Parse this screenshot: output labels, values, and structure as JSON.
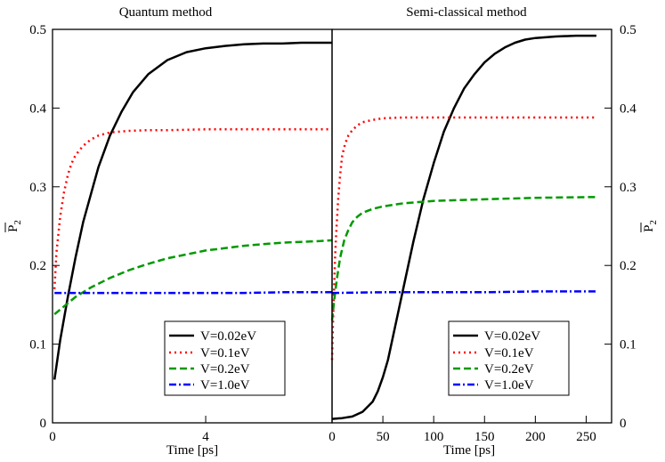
{
  "chart_data": [
    {
      "type": "line",
      "title": "Quantum method",
      "xlabel": "Time [ps]",
      "ylabel_main": "P",
      "ylabel_sub": "2",
      "xlim": [
        0,
        7.3
      ],
      "ylim": [
        0,
        0.5
      ],
      "xticks": [
        0,
        4
      ],
      "xtick_labels": [
        "0",
        "4"
      ],
      "yticks": [
        0,
        0.1,
        0.2,
        0.3,
        0.4,
        0.5
      ],
      "ytick_labels": [
        "0",
        "0.1",
        "0.2",
        "0.3",
        "0.4",
        "0.5"
      ],
      "legend_position": "bottom-right",
      "series": [
        {
          "name": "V=0.02eV",
          "color": "#000000",
          "style": "solid",
          "x": [
            0.05,
            0.2,
            0.4,
            0.6,
            0.8,
            1.0,
            1.2,
            1.5,
            1.8,
            2.1,
            2.5,
            3.0,
            3.5,
            4.0,
            4.5,
            5.0,
            5.5,
            6.0,
            6.5,
            7.0,
            7.3
          ],
          "y": [
            0.055,
            0.105,
            0.16,
            0.21,
            0.255,
            0.29,
            0.325,
            0.365,
            0.395,
            0.42,
            0.443,
            0.461,
            0.471,
            0.476,
            0.479,
            0.481,
            0.482,
            0.482,
            0.483,
            0.483,
            0.483
          ]
        },
        {
          "name": "V=0.1eV",
          "color": "#ff0000",
          "style": "dotted",
          "x": [
            0.05,
            0.1,
            0.2,
            0.3,
            0.4,
            0.5,
            0.6,
            0.8,
            1.0,
            1.2,
            1.5,
            2.0,
            2.5,
            3.0,
            4.0,
            5.0,
            6.0,
            7.0,
            7.3
          ],
          "y": [
            0.17,
            0.215,
            0.262,
            0.293,
            0.315,
            0.33,
            0.34,
            0.352,
            0.36,
            0.365,
            0.369,
            0.371,
            0.372,
            0.372,
            0.373,
            0.373,
            0.373,
            0.373,
            0.373
          ]
        },
        {
          "name": "V=0.2eV",
          "color": "#009900",
          "style": "dashed",
          "x": [
            0.05,
            0.3,
            0.6,
            1.0,
            1.5,
            2.0,
            2.5,
            3.0,
            3.5,
            4.0,
            4.5,
            5.0,
            5.5,
            6.0,
            6.5,
            7.0,
            7.3
          ],
          "y": [
            0.138,
            0.148,
            0.16,
            0.172,
            0.184,
            0.194,
            0.202,
            0.209,
            0.214,
            0.219,
            0.222,
            0.225,
            0.227,
            0.229,
            0.23,
            0.231,
            0.232
          ]
        },
        {
          "name": "V=1.0eV",
          "color": "#0000ff",
          "style": "dash-dot",
          "x": [
            0.05,
            1.0,
            2.0,
            3.0,
            4.0,
            5.0,
            6.0,
            7.0,
            7.3
          ],
          "y": [
            0.165,
            0.165,
            0.165,
            0.165,
            0.165,
            0.165,
            0.166,
            0.166,
            0.166
          ]
        }
      ]
    },
    {
      "type": "line",
      "title": "Semi-classical method",
      "xlabel": "Time [ps]",
      "ylabel_main": "P",
      "ylabel_sub": "2",
      "xlim": [
        0,
        275
      ],
      "ylim": [
        0,
        0.5
      ],
      "xticks": [
        0,
        50,
        100,
        150,
        200,
        250
      ],
      "xtick_labels": [
        "0",
        "50",
        "100",
        "150",
        "200",
        "250"
      ],
      "yticks": [
        0,
        0.1,
        0.2,
        0.3,
        0.4,
        0.5
      ],
      "ytick_labels": [
        "0",
        "0.1",
        "0.2",
        "0.3",
        "0.4",
        "0.5"
      ],
      "legend_position": "bottom-right",
      "series": [
        {
          "name": "V=0.02eV",
          "color": "#000000",
          "style": "solid",
          "x": [
            0,
            10,
            20,
            30,
            40,
            45,
            50,
            55,
            60,
            65,
            70,
            75,
            80,
            90,
            100,
            110,
            120,
            130,
            140,
            150,
            160,
            170,
            180,
            190,
            200,
            220,
            240,
            260
          ],
          "y": [
            0.005,
            0.006,
            0.008,
            0.014,
            0.027,
            0.04,
            0.058,
            0.08,
            0.11,
            0.14,
            0.17,
            0.2,
            0.23,
            0.285,
            0.33,
            0.37,
            0.4,
            0.425,
            0.443,
            0.458,
            0.469,
            0.477,
            0.483,
            0.487,
            0.489,
            0.491,
            0.492,
            0.492
          ]
        },
        {
          "name": "V=0.1eV",
          "color": "#ff0000",
          "style": "dotted",
          "x": [
            0,
            1,
            2,
            3,
            4,
            6,
            8,
            10,
            13,
            16,
            20,
            25,
            30,
            40,
            50,
            70,
            100,
            150,
            200,
            260
          ],
          "y": [
            0.08,
            0.13,
            0.17,
            0.21,
            0.24,
            0.285,
            0.315,
            0.34,
            0.355,
            0.365,
            0.372,
            0.378,
            0.382,
            0.385,
            0.387,
            0.388,
            0.388,
            0.388,
            0.388,
            0.388
          ]
        },
        {
          "name": "V=0.2eV",
          "color": "#009900",
          "style": "dashed",
          "x": [
            0,
            2,
            5,
            8,
            12,
            16,
            20,
            25,
            30,
            40,
            50,
            70,
            100,
            150,
            200,
            260
          ],
          "y": [
            0.13,
            0.155,
            0.185,
            0.21,
            0.232,
            0.245,
            0.255,
            0.262,
            0.267,
            0.272,
            0.275,
            0.279,
            0.282,
            0.284,
            0.286,
            0.287
          ]
        },
        {
          "name": "V=1.0eV",
          "color": "#0000ff",
          "style": "dash-dot",
          "x": [
            0,
            50,
            100,
            150,
            200,
            260
          ],
          "y": [
            0.165,
            0.166,
            0.166,
            0.166,
            0.167,
            0.167
          ]
        }
      ]
    }
  ]
}
